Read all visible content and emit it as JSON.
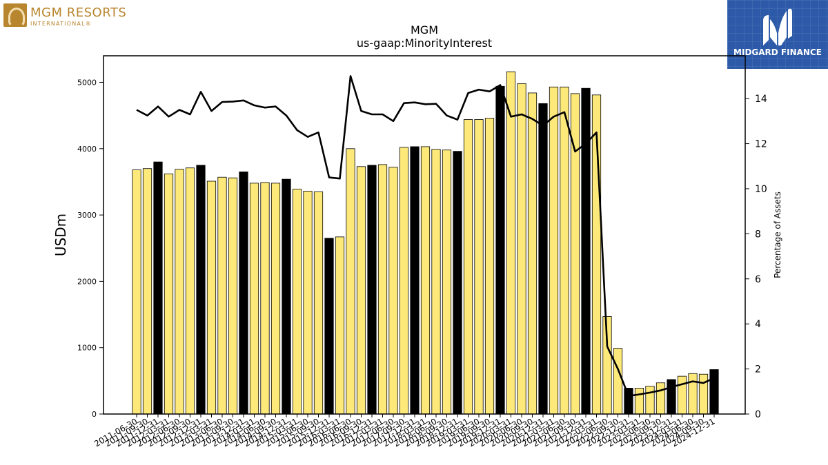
{
  "brand_left": {
    "name": "MGM RESORTS",
    "sub": "INTERNATIONAL®",
    "icon": "lion-head-icon",
    "color": "#b8862f"
  },
  "brand_right": {
    "name": "MIDGARD FINANCE",
    "icon": "midgard-m-icon",
    "color": "#2d5aa8"
  },
  "chart_data": {
    "type": "bar",
    "title": "MGM",
    "subtitle": "us-gaap:MinorityInterest",
    "ylabel": "USDm",
    "y2label": "Percentage of Assets",
    "ylim": [
      0,
      5400
    ],
    "y2lim": [
      0,
      15.9
    ],
    "yticks": [
      0,
      1000,
      2000,
      3000,
      4000,
      5000
    ],
    "y2ticks": [
      0,
      2,
      4,
      6,
      8,
      10,
      12,
      14
    ],
    "categories": [
      "2011-06-30",
      "2011-09-30",
      "2011-12-31",
      "2012-03-31",
      "2012-06-30",
      "2012-09-30",
      "2012-12-31",
      "2013-03-31",
      "2013-06-30",
      "2013-09-30",
      "2013-12-31",
      "2014-03-31",
      "2014-06-30",
      "2014-09-30",
      "2014-12-31",
      "2015-03-31",
      "2015-06-30",
      "2015-09-30",
      "2015-12-31",
      "2016-03-31",
      "2016-06-30",
      "2016-09-30",
      "2016-12-31",
      "2017-03-31",
      "2017-06-30",
      "2017-09-30",
      "2017-12-31",
      "2018-03-31",
      "2018-06-30",
      "2018-09-30",
      "2018-12-31",
      "2019-03-31",
      "2019-06-30",
      "2019-09-30",
      "2019-12-31",
      "2020-03-31",
      "2020-06-30",
      "2020-09-30",
      "2020-12-31",
      "2021-03-31",
      "2021-06-30",
      "2021-09-30",
      "2021-12-31",
      "2022-03-31",
      "2022-06-30",
      "2022-09-30",
      "2022-12-31",
      "2023-03-31",
      "2023-06-30",
      "2023-09-30",
      "2023-12-31",
      "2024-03-31",
      "2024-06-30",
      "2024-09-30",
      "2024-12-31"
    ],
    "series": [
      {
        "type": "bar",
        "values": [
          3680,
          3700,
          3800,
          3620,
          3690,
          3710,
          3750,
          3510,
          3570,
          3560,
          3650,
          3480,
          3490,
          3480,
          3540,
          3390,
          3360,
          3350,
          2650,
          2670,
          4000,
          3730,
          3750,
          3760,
          3720,
          4020,
          4030,
          4030,
          3990,
          3980,
          3960,
          4440,
          4440,
          4460,
          4940,
          5160,
          4980,
          4840,
          4680,
          4930,
          4930,
          4830,
          4910,
          4810,
          1470,
          990,
          390,
          390,
          420,
          470,
          520,
          570,
          610,
          600,
          670
        ],
        "highlight": [
          false,
          false,
          true,
          false,
          false,
          false,
          true,
          false,
          false,
          false,
          true,
          false,
          false,
          false,
          true,
          false,
          false,
          false,
          true,
          false,
          false,
          false,
          true,
          false,
          false,
          false,
          true,
          false,
          false,
          false,
          true,
          false,
          false,
          false,
          true,
          false,
          false,
          false,
          true,
          false,
          false,
          false,
          true,
          false,
          false,
          false,
          true,
          false,
          false,
          false,
          true,
          false,
          false,
          false,
          true
        ]
      },
      {
        "type": "line",
        "axis": "right",
        "values": [
          13.5,
          13.25,
          13.65,
          13.2,
          13.5,
          13.3,
          14.3,
          13.45,
          13.85,
          13.87,
          13.92,
          13.7,
          13.6,
          13.65,
          13.25,
          12.6,
          12.3,
          12.5,
          10.5,
          10.45,
          15.0,
          13.45,
          13.3,
          13.3,
          13.0,
          13.8,
          13.83,
          13.75,
          13.77,
          13.25,
          13.07,
          14.25,
          14.4,
          14.32,
          14.6,
          13.2,
          13.3,
          13.1,
          12.8,
          13.2,
          13.4,
          11.65,
          12.0,
          12.5,
          3.0,
          2.0,
          0.8,
          0.87,
          0.95,
          1.05,
          1.2,
          1.32,
          1.45,
          1.38,
          1.6
        ]
      }
    ],
    "colors": {
      "bar": "#fde97a",
      "bar_highlight": "#000000",
      "line": "#000000"
    }
  }
}
